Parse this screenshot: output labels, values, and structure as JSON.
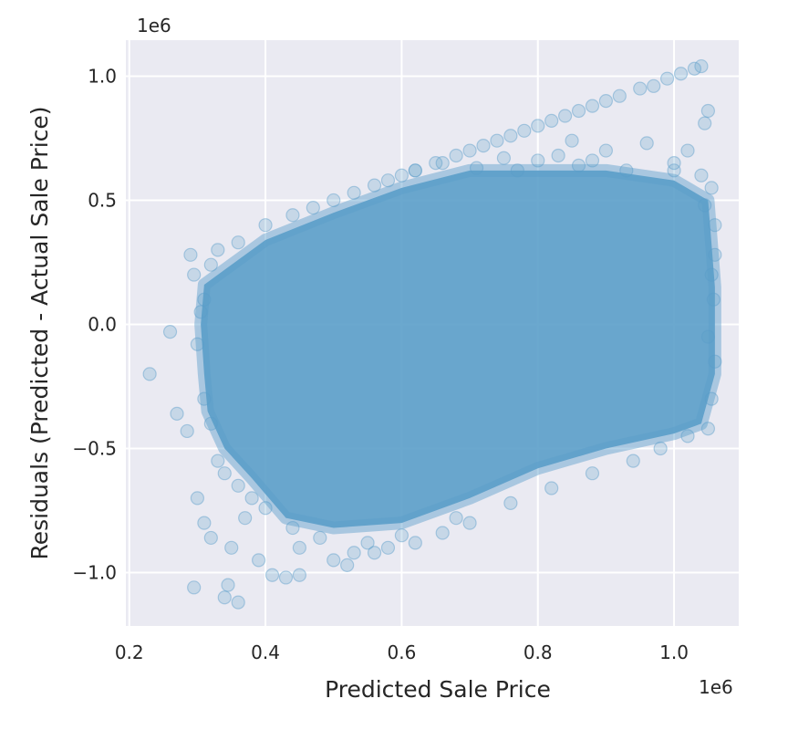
{
  "chart_data": {
    "type": "scatter",
    "title": "",
    "xlabel": "Predicted Sale Price",
    "ylabel": "Residuals (Predicted - Actual Sale Price)",
    "x_offset_label": "1e6",
    "y_offset_label": "1e6",
    "xlim": [
      0.195,
      1.095
    ],
    "ylim": [
      -1.215,
      1.145
    ],
    "x_ticks": [
      0.2,
      0.4,
      0.6,
      0.8,
      1.0
    ],
    "x_tick_labels": [
      "0.2",
      "0.4",
      "0.6",
      "0.8",
      "1.0"
    ],
    "y_ticks": [
      -1.0,
      -0.5,
      0.0,
      0.5,
      1.0
    ],
    "y_tick_labels": [
      "−1.0",
      "−0.5",
      "0.0",
      "0.5",
      "1.0"
    ],
    "grid": true,
    "marker_color": "#5b9ec9",
    "marker_opacity": 0.25,
    "background_color": "#eaeaf2",
    "cloud_polygon": [
      [
        0.31,
        0.16
      ],
      [
        0.4,
        0.34
      ],
      [
        0.5,
        0.45
      ],
      [
        0.6,
        0.55
      ],
      [
        0.7,
        0.62
      ],
      [
        0.8,
        0.62
      ],
      [
        0.9,
        0.62
      ],
      [
        1.0,
        0.58
      ],
      [
        1.05,
        0.5
      ],
      [
        1.06,
        0.15
      ],
      [
        1.06,
        -0.2
      ],
      [
        1.04,
        -0.4
      ],
      [
        1.0,
        -0.44
      ],
      [
        0.9,
        -0.5
      ],
      [
        0.8,
        -0.58
      ],
      [
        0.7,
        -0.7
      ],
      [
        0.6,
        -0.8
      ],
      [
        0.5,
        -0.82
      ],
      [
        0.43,
        -0.78
      ],
      [
        0.38,
        -0.62
      ],
      [
        0.34,
        -0.5
      ],
      [
        0.315,
        -0.35
      ],
      [
        0.31,
        -0.2
      ],
      [
        0.305,
        0.0
      ]
    ],
    "points": [
      [
        0.23,
        -0.2
      ],
      [
        0.26,
        -0.03
      ],
      [
        0.29,
        0.28
      ],
      [
        0.295,
        0.2
      ],
      [
        0.3,
        -0.08
      ],
      [
        0.285,
        -0.43
      ],
      [
        0.3,
        -0.7
      ],
      [
        0.31,
        -0.8
      ],
      [
        0.295,
        -1.06
      ],
      [
        0.32,
        -0.86
      ],
      [
        0.345,
        -1.05
      ],
      [
        0.34,
        -1.1
      ],
      [
        0.36,
        -1.12
      ],
      [
        0.35,
        -0.9
      ],
      [
        0.37,
        -0.78
      ],
      [
        0.39,
        -0.95
      ],
      [
        0.41,
        -1.01
      ],
      [
        0.43,
        -1.02
      ],
      [
        0.45,
        -1.01
      ],
      [
        0.5,
        -0.95
      ],
      [
        0.52,
        -0.97
      ],
      [
        0.56,
        -0.92
      ],
      [
        0.33,
        -0.55
      ],
      [
        0.32,
        -0.4
      ],
      [
        0.31,
        -0.3
      ],
      [
        0.33,
        0.3
      ],
      [
        0.36,
        0.33
      ],
      [
        0.4,
        0.4
      ],
      [
        0.44,
        0.44
      ],
      [
        0.47,
        0.47
      ],
      [
        0.5,
        0.5
      ],
      [
        0.53,
        0.53
      ],
      [
        0.56,
        0.56
      ],
      [
        0.58,
        0.58
      ],
      [
        0.6,
        0.6
      ],
      [
        0.62,
        0.62
      ],
      [
        0.65,
        0.65
      ],
      [
        0.68,
        0.68
      ],
      [
        0.7,
        0.7
      ],
      [
        0.72,
        0.72
      ],
      [
        0.74,
        0.74
      ],
      [
        0.76,
        0.76
      ],
      [
        0.78,
        0.78
      ],
      [
        0.8,
        0.8
      ],
      [
        0.82,
        0.82
      ],
      [
        0.84,
        0.84
      ],
      [
        0.86,
        0.86
      ],
      [
        0.88,
        0.88
      ],
      [
        0.9,
        0.9
      ],
      [
        0.92,
        0.92
      ],
      [
        0.95,
        0.95
      ],
      [
        0.97,
        0.96
      ],
      [
        0.99,
        0.99
      ],
      [
        1.01,
        1.01
      ],
      [
        1.03,
        1.03
      ],
      [
        1.04,
        1.04
      ],
      [
        1.05,
        0.86
      ],
      [
        1.045,
        0.81
      ],
      [
        1.0,
        0.65
      ],
      [
        0.96,
        0.73
      ],
      [
        0.85,
        0.74
      ],
      [
        0.83,
        0.68
      ],
      [
        0.88,
        0.66
      ],
      [
        1.02,
        0.7
      ],
      [
        1.0,
        0.62
      ],
      [
        0.75,
        0.67
      ],
      [
        0.66,
        0.65
      ],
      [
        0.62,
        0.62
      ],
      [
        1.055,
        0.55
      ],
      [
        1.06,
        0.4
      ],
      [
        1.055,
        0.2
      ],
      [
        1.05,
        -0.05
      ],
      [
        1.055,
        -0.3
      ],
      [
        1.05,
        -0.42
      ],
      [
        1.02,
        -0.45
      ],
      [
        0.98,
        -0.5
      ],
      [
        0.94,
        -0.55
      ],
      [
        0.88,
        -0.6
      ],
      [
        0.82,
        -0.66
      ],
      [
        0.76,
        -0.72
      ],
      [
        0.7,
        -0.8
      ],
      [
        0.66,
        -0.84
      ],
      [
        0.62,
        -0.88
      ],
      [
        0.58,
        -0.9
      ],
      [
        0.55,
        -0.88
      ],
      [
        0.48,
        -0.86
      ],
      [
        0.44,
        -0.82
      ],
      [
        0.4,
        -0.74
      ],
      [
        0.38,
        -0.7
      ],
      [
        0.36,
        -0.65
      ],
      [
        0.34,
        -0.6
      ],
      [
        0.45,
        -0.9
      ],
      [
        0.53,
        -0.92
      ],
      [
        0.6,
        -0.85
      ],
      [
        0.68,
        -0.78
      ],
      [
        0.27,
        -0.36
      ],
      [
        0.32,
        0.24
      ],
      [
        0.31,
        0.1
      ],
      [
        0.305,
        0.05
      ],
      [
        0.9,
        0.7
      ],
      [
        0.93,
        0.62
      ],
      [
        0.8,
        0.66
      ],
      [
        0.71,
        0.63
      ],
      [
        0.77,
        0.62
      ],
      [
        0.86,
        0.64
      ],
      [
        1.04,
        0.6
      ],
      [
        1.045,
        0.48
      ],
      [
        1.06,
        0.28
      ],
      [
        1.058,
        0.1
      ],
      [
        1.06,
        -0.15
      ]
    ]
  }
}
